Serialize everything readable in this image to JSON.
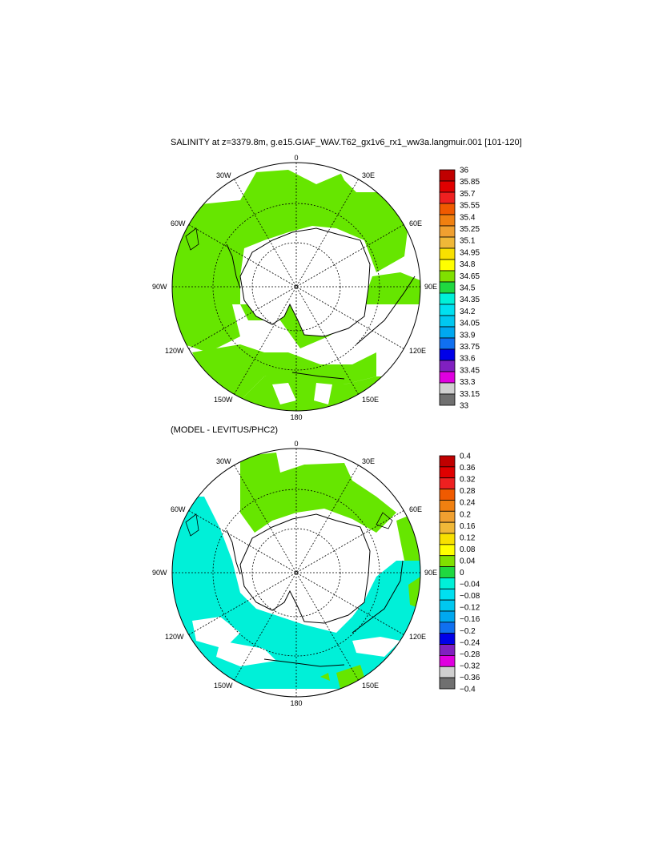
{
  "title": "SALINITY at z=3379.8m, g.e15.GIAF_WAV.T62_gx1v6_rx1_ww3a.langmuir.001 [101-120]",
  "subtitle": "(MODEL - LEVITUS/PHC2)",
  "map_labels": {
    "top": "0",
    "bottom": "180",
    "left": "90W",
    "right": "90E",
    "nw1": "30W",
    "nw2": "60W",
    "sw1": "120W",
    "sw2": "150W",
    "ne1": "30E",
    "ne2": "60E",
    "se1": "120E",
    "se2": "150E"
  },
  "colorbar1": {
    "labels": [
      "36",
      "35.85",
      "35.7",
      "35.55",
      "35.4",
      "35.25",
      "35.1",
      "34.95",
      "34.8",
      "34.65",
      "34.5",
      "34.35",
      "34.2",
      "34.05",
      "33.9",
      "33.75",
      "33.6",
      "33.45",
      "33.3",
      "33.15",
      "33"
    ],
    "colors": [
      "#c00000",
      "#e00000",
      "#ee2020",
      "#f05a00",
      "#f08010",
      "#f0a030",
      "#f0b838",
      "#f8e000",
      "#ffff00",
      "#80e000",
      "#20d840",
      "#00f0d8",
      "#00e0f0",
      "#00c8f0",
      "#00a8f0",
      "#1070f0",
      "#0000e8",
      "#8020c0",
      "#e000e0",
      "#d0d0d0",
      "#707070"
    ]
  },
  "colorbar2": {
    "labels": [
      "0.4",
      "0.36",
      "0.32",
      "0.28",
      "0.24",
      "0.2",
      "0.16",
      "0.12",
      "0.08",
      "0.04",
      "0",
      "−0.04",
      "−0.08",
      "−0.12",
      "−0.16",
      "−0.2",
      "−0.24",
      "−0.28",
      "−0.32",
      "−0.36",
      "−0.4"
    ],
    "colors": [
      "#c00000",
      "#e00000",
      "#ee2020",
      "#f05a00",
      "#f08010",
      "#f0a030",
      "#f0b838",
      "#f8e000",
      "#ffff00",
      "#80e000",
      "#20d840",
      "#00f0d8",
      "#00e0f0",
      "#00c8f0",
      "#00a8f0",
      "#1070f0",
      "#0000e8",
      "#8020c0",
      "#e000e0",
      "#d0d0d0",
      "#707070"
    ]
  },
  "fill_colors": {
    "green": "#66e600",
    "cyan": "#00f0d8",
    "mid_green": "#20d840"
  }
}
